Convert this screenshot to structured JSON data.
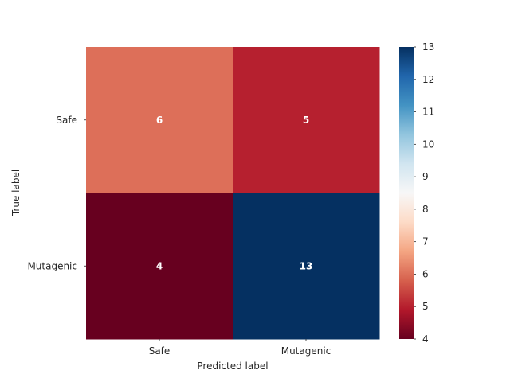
{
  "chart_data": {
    "type": "heatmap",
    "xlabel": "Predicted label",
    "ylabel": "True label",
    "x_categories": [
      "Safe",
      "Mutagenic"
    ],
    "y_categories": [
      "Safe",
      "Mutagenic"
    ],
    "values": [
      [
        6,
        5
      ],
      [
        4,
        13
      ]
    ],
    "colormap": "RdBu",
    "colorbar": {
      "min": 4,
      "max": 13,
      "ticks": [
        4,
        5,
        6,
        7,
        8,
        9,
        10,
        11,
        12,
        13
      ]
    },
    "grid": false
  }
}
